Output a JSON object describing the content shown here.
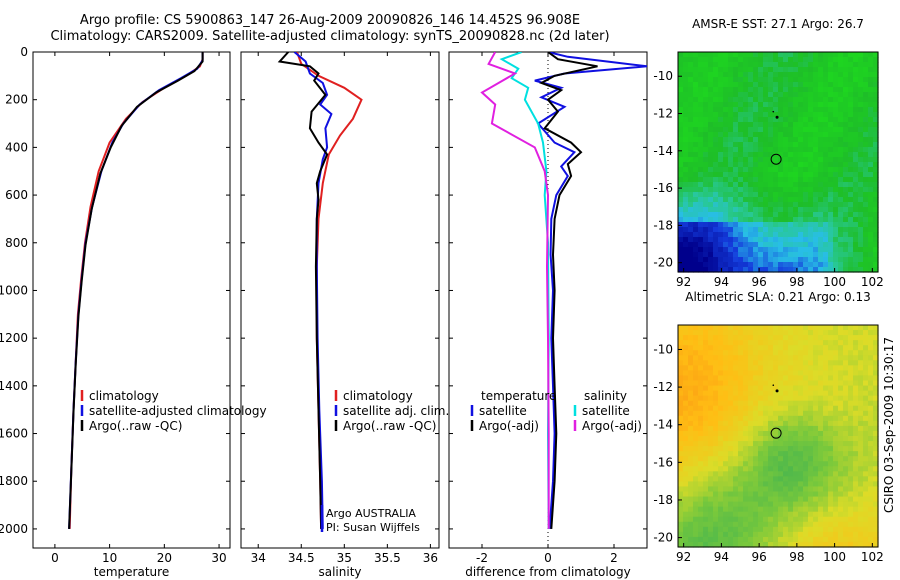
{
  "header": {
    "line1": "Argo profile: CS 5900863_147 26-Aug-2009 20090826_146 14.452S 96.908E",
    "line2": "Climatology: CARS2009. Satellite-adjusted climatology: synTS_20090828.nc (2d later)"
  },
  "side_label": "CSIRO 03-Sep-2009 10:30:17",
  "colors": {
    "climatology": "#e02020",
    "satellite": "#1010e0",
    "argo": "#000000",
    "salinity_sat": "#00e0e0",
    "salinity_argo": "#e020e0"
  },
  "chart_data": [
    {
      "type": "line",
      "xlabel": "temperature",
      "xlim": [
        -4,
        32
      ],
      "ylim": [
        2080,
        0
      ],
      "xticks": [
        "0",
        "10",
        "20",
        "30"
      ],
      "yticks": [
        "0",
        "200",
        "400",
        "600",
        "800",
        "1000",
        "1200",
        "1400",
        "1600",
        "1800",
        "2000"
      ],
      "legend": [
        "climatology",
        "satellite-adjusted climatology",
        "Argo(..raw -QC)"
      ],
      "series": [
        {
          "name": "climatology",
          "color_key": "climatology",
          "points": [
            [
              27,
              0
            ],
            [
              27,
              30
            ],
            [
              26.5,
              60
            ],
            [
              24,
              100
            ],
            [
              20,
              150
            ],
            [
              16,
              210
            ],
            [
              13,
              280
            ],
            [
              10,
              380
            ],
            [
              8,
              500
            ],
            [
              6.5,
              650
            ],
            [
              5.5,
              800
            ],
            [
              4.8,
              950
            ],
            [
              4.2,
              1100
            ],
            [
              3.8,
              1300
            ],
            [
              3.4,
              1500
            ],
            [
              3,
              1750
            ],
            [
              2.7,
              2000
            ]
          ]
        },
        {
          "name": "satellite-adjusted climatology",
          "color_key": "satellite",
          "points": [
            [
              27,
              0
            ],
            [
              27,
              35
            ],
            [
              26,
              70
            ],
            [
              23,
              110
            ],
            [
              19,
              160
            ],
            [
              15.5,
              220
            ],
            [
              12.5,
              300
            ],
            [
              10.5,
              380
            ],
            [
              8.5,
              500
            ],
            [
              6.8,
              650
            ],
            [
              5.6,
              800
            ],
            [
              4.9,
              950
            ],
            [
              4.3,
              1100
            ],
            [
              3.8,
              1300
            ],
            [
              3.4,
              1500
            ],
            [
              3,
              1750
            ],
            [
              2.6,
              2000
            ]
          ]
        },
        {
          "name": "Argo(..raw -QC)",
          "color_key": "argo",
          "points": [
            [
              27,
              0
            ],
            [
              27,
              40
            ],
            [
              25.5,
              80
            ],
            [
              22.5,
              120
            ],
            [
              18.5,
              170
            ],
            [
              15,
              230
            ],
            [
              12.2,
              310
            ],
            [
              10.2,
              400
            ],
            [
              8.3,
              510
            ],
            [
              6.7,
              660
            ],
            [
              5.6,
              810
            ],
            [
              4.9,
              960
            ],
            [
              4.3,
              1110
            ],
            [
              3.8,
              1310
            ],
            [
              3.4,
              1510
            ],
            [
              3,
              1760
            ],
            [
              2.6,
              2000
            ]
          ]
        }
      ]
    },
    {
      "type": "line",
      "xlabel": "salinity",
      "xlim": [
        33.8,
        36.1
      ],
      "ylim": [
        2080,
        0
      ],
      "xticks": [
        "34",
        "34.5",
        "35",
        "35.5",
        "36"
      ],
      "legend": [
        "climatology",
        "satellite adj. clim.",
        "Argo(..raw -QC)"
      ],
      "annotations": [
        "Argo AUSTRALIA",
        "PI: Susan Wijffels"
      ],
      "series": [
        {
          "name": "climatology",
          "color_key": "climatology",
          "points": [
            [
              34.45,
              0
            ],
            [
              34.5,
              50
            ],
            [
              34.7,
              100
            ],
            [
              35.0,
              150
            ],
            [
              35.2,
              200
            ],
            [
              35.1,
              280
            ],
            [
              34.95,
              350
            ],
            [
              34.82,
              430
            ],
            [
              34.75,
              550
            ],
            [
              34.7,
              700
            ],
            [
              34.68,
              900
            ],
            [
              34.68,
              1200
            ],
            [
              34.7,
              1500
            ],
            [
              34.72,
              1800
            ],
            [
              34.73,
              2000
            ]
          ]
        },
        {
          "name": "satellite adj. clim.",
          "color_key": "satellite",
          "points": [
            [
              34.42,
              0
            ],
            [
              34.55,
              40
            ],
            [
              34.6,
              90
            ],
            [
              34.75,
              130
            ],
            [
              34.8,
              180
            ],
            [
              34.72,
              220
            ],
            [
              34.85,
              260
            ],
            [
              34.78,
              320
            ],
            [
              34.8,
              400
            ],
            [
              34.75,
              450
            ],
            [
              34.7,
              550
            ],
            [
              34.68,
              700
            ],
            [
              34.68,
              900
            ],
            [
              34.69,
              1200
            ],
            [
              34.71,
              1500
            ],
            [
              34.74,
              1800
            ],
            [
              34.75,
              2000
            ]
          ]
        },
        {
          "name": "Argo(..raw -QC)",
          "color_key": "argo",
          "points": [
            [
              34.35,
              0
            ],
            [
              34.25,
              40
            ],
            [
              34.6,
              60
            ],
            [
              34.7,
              90
            ],
            [
              34.65,
              120
            ],
            [
              34.78,
              180
            ],
            [
              34.62,
              250
            ],
            [
              34.6,
              320
            ],
            [
              34.7,
              380
            ],
            [
              34.8,
              430
            ],
            [
              34.72,
              500
            ],
            [
              34.68,
              550
            ],
            [
              34.7,
              620
            ],
            [
              34.68,
              700
            ],
            [
              34.67,
              900
            ],
            [
              34.68,
              1200
            ],
            [
              34.7,
              1500
            ],
            [
              34.72,
              1800
            ],
            [
              34.73,
              2000
            ]
          ]
        }
      ]
    },
    {
      "type": "line",
      "xlabel": "difference from climatology",
      "xlim": [
        -3,
        3
      ],
      "ylim": [
        2080,
        0
      ],
      "xticks": [
        "-2",
        "0",
        "2"
      ],
      "legend_left": [
        "temperature",
        "satellite",
        "Argo(-adj)"
      ],
      "legend_right": [
        "salinity",
        "satellite",
        "Argo(-adj)"
      ],
      "series": [
        {
          "name": "temperature satellite",
          "color_key": "satellite",
          "points": [
            [
              0,
              0
            ],
            [
              0.6,
              20
            ],
            [
              3.0,
              60
            ],
            [
              0.5,
              90
            ],
            [
              -0.4,
              120
            ],
            [
              0.4,
              150
            ],
            [
              -0.2,
              190
            ],
            [
              0.5,
              230
            ],
            [
              -0.3,
              300
            ],
            [
              0.2,
              380
            ],
            [
              0.8,
              420
            ],
            [
              0.4,
              480
            ],
            [
              0.6,
              520
            ],
            [
              0.25,
              600
            ],
            [
              0.1,
              700
            ],
            [
              0.08,
              850
            ],
            [
              0.15,
              1000
            ],
            [
              0.1,
              1200
            ],
            [
              0.15,
              1400
            ],
            [
              0.2,
              1600
            ],
            [
              0.15,
              1800
            ],
            [
              0.05,
              2000
            ]
          ]
        },
        {
          "name": "temperature Argo(-adj)",
          "color_key": "argo",
          "points": [
            [
              0,
              0
            ],
            [
              0.3,
              30
            ],
            [
              1.5,
              60
            ],
            [
              0.2,
              100
            ],
            [
              -0.2,
              130
            ],
            [
              0.4,
              160
            ],
            [
              0,
              200
            ],
            [
              0.3,
              250
            ],
            [
              -0.1,
              320
            ],
            [
              0.7,
              380
            ],
            [
              1.0,
              420
            ],
            [
              0.6,
              470
            ],
            [
              0.7,
              520
            ],
            [
              0.35,
              600
            ],
            [
              0.2,
              700
            ],
            [
              0.15,
              850
            ],
            [
              0.2,
              1000
            ],
            [
              0.15,
              1200
            ],
            [
              0.2,
              1400
            ],
            [
              0.25,
              1600
            ],
            [
              0.2,
              1800
            ],
            [
              0.1,
              2000
            ]
          ]
        },
        {
          "name": "salinity satellite",
          "color_key": "salinity_sat",
          "points": [
            [
              -0.8,
              0
            ],
            [
              -1.4,
              30
            ],
            [
              -0.9,
              70
            ],
            [
              -1.1,
              110
            ],
            [
              -0.6,
              150
            ],
            [
              -0.7,
              200
            ],
            [
              -0.3,
              300
            ],
            [
              -0.15,
              380
            ],
            [
              -0.05,
              500
            ],
            [
              -0.1,
              600
            ],
            [
              0,
              800
            ],
            [
              0.02,
              1200
            ],
            [
              0,
              1600
            ],
            [
              0.02,
              2000
            ]
          ]
        },
        {
          "name": "salinity Argo(-adj)",
          "color_key": "salinity_argo",
          "points": [
            [
              -1.6,
              0
            ],
            [
              -1.8,
              50
            ],
            [
              -1.0,
              90
            ],
            [
              -2.0,
              170
            ],
            [
              -1.6,
              220
            ],
            [
              -1.7,
              300
            ],
            [
              -0.4,
              400
            ],
            [
              -0.1,
              500
            ],
            [
              0,
              600
            ],
            [
              -0.03,
              900
            ],
            [
              0,
              1200
            ],
            [
              0.02,
              1600
            ],
            [
              0.02,
              2000
            ]
          ]
        }
      ]
    }
  ],
  "maps": [
    {
      "title": "AMSR-E SST: 27.1 Argo: 26.7",
      "xticks": [
        "92",
        "94",
        "96",
        "98",
        "100",
        "102"
      ],
      "yticks": [
        "-10",
        "-12",
        "-14",
        "-16",
        "-18",
        "-20"
      ],
      "lon_range": [
        91.7,
        102.3
      ],
      "lat_range": [
        -20.5,
        -8.7
      ],
      "float_position": [
        96.9,
        -14.45
      ]
    },
    {
      "title": "Altimetric SLA: 0.21 Argo: 0.13",
      "xticks": [
        "92",
        "94",
        "96",
        "98",
        "100",
        "102"
      ],
      "yticks": [
        "-10",
        "-12",
        "-14",
        "-16",
        "-18",
        "-20"
      ],
      "lon_range": [
        91.7,
        102.3
      ],
      "lat_range": [
        -20.5,
        -8.7
      ],
      "float_position": [
        96.9,
        -14.45
      ]
    }
  ]
}
